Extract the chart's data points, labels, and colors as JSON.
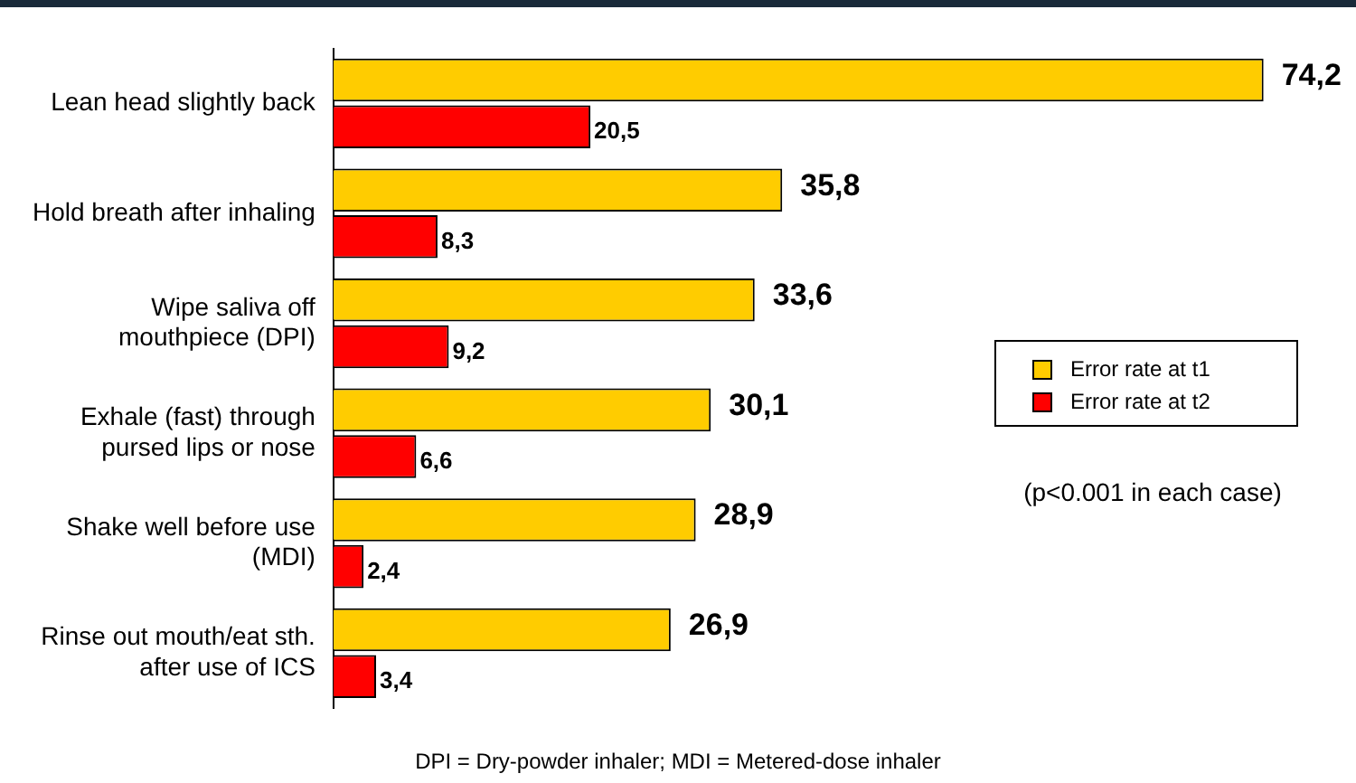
{
  "chart_data": {
    "type": "bar",
    "orientation": "horizontal",
    "categories": [
      "Lean head slightly back",
      "Hold breath after inhaling",
      "Wipe saliva off mouthpiece (DPI)",
      "Exhale (fast) through pursed lips or nose",
      "Shake well before use (MDI)",
      "Rinse out mouth/eat sth. after use of ICS"
    ],
    "series": [
      {
        "name": "Error rate at t1",
        "color": "#ffcc00",
        "values": [
          74.2,
          35.8,
          33.6,
          30.1,
          28.9,
          26.9
        ],
        "value_labels": [
          "74,2",
          "35,8",
          "33,6",
          "30,1",
          "28,9",
          "26,9"
        ]
      },
      {
        "name": "Error rate at t2",
        "color": "#ff0000",
        "values": [
          20.5,
          8.3,
          9.2,
          6.6,
          2.4,
          3.4
        ],
        "value_labels": [
          "20,5",
          "8,3",
          "9,2",
          "6,6",
          "2,4",
          "3,4"
        ]
      }
    ],
    "legend": "right",
    "grid": false,
    "annotations": [
      "(p<0.001 in each case)",
      "DPI = Dry-powder inhaler; MDI = Metered-dose inhaler"
    ]
  }
}
